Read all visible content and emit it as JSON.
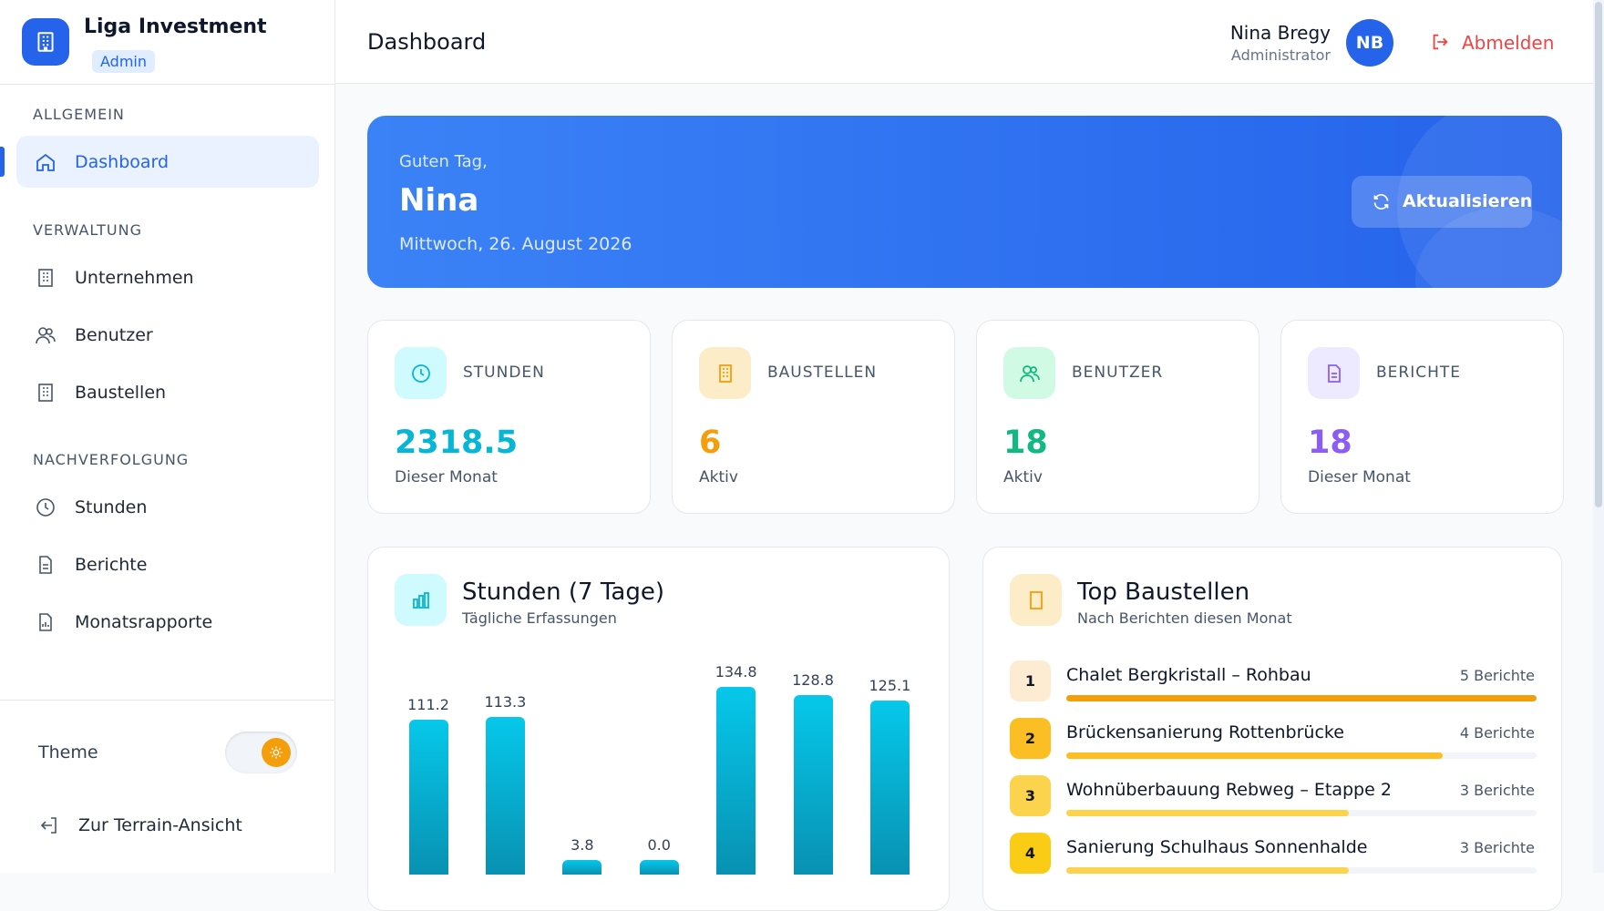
{
  "sidebar": {
    "brand": "Liga Investment",
    "role_badge": "Admin",
    "sections": [
      {
        "title": "ALLGEMEIN",
        "items": [
          "Dashboard"
        ]
      },
      {
        "title": "VERWALTUNG",
        "items": [
          "Unternehmen",
          "Benutzer",
          "Baustellen"
        ]
      },
      {
        "title": "NACHVERFOLGUNG",
        "items": [
          "Stunden",
          "Berichte",
          "Monatsrapporte"
        ]
      }
    ],
    "theme_label": "Theme",
    "terrain_link": "Zur Terrain-Ansicht"
  },
  "header": {
    "title": "Dashboard",
    "user_name": "Nina Bregy",
    "user_role": "Administrator",
    "initials": "NB",
    "logout": "Abmelden"
  },
  "hero": {
    "greeting": "Guten Tag,",
    "name": "Nina",
    "date": "Mittwoch, 26. August 2026",
    "button": "Aktualisieren"
  },
  "stats": [
    {
      "label": "STUNDEN",
      "value": "2318.5",
      "note": "Dieser Monat",
      "color": "#06b6d4",
      "bg": "#cffafe"
    },
    {
      "label": "BAUSTELLEN",
      "value": "6",
      "note": "Aktiv",
      "color": "#f59e0b",
      "bg": "#fdecc8"
    },
    {
      "label": "BENUTZER",
      "value": "18",
      "note": "Aktiv",
      "color": "#10b981",
      "bg": "#d1fae5"
    },
    {
      "label": "BERICHTE",
      "value": "18",
      "note": "Dieser Monat",
      "color": "#8b5cf6",
      "bg": "#ede9fe"
    }
  ],
  "chart_data": {
    "type": "bar",
    "title": "Stunden (7 Tage)",
    "subtitle": "Tägliche Erfassungen",
    "values": [
      111.2,
      113.3,
      3.8,
      0,
      134.8,
      128.8,
      125.1
    ],
    "value_labels": [
      "111.2",
      "113.3",
      "3.8",
      "0.0",
      "134.8",
      "128.8",
      "125.1"
    ],
    "ylim": [
      0,
      140
    ],
    "color": "#06b6d4"
  },
  "top_sites": {
    "title": "Top Baustellen",
    "subtitle": "Nach Berichten diesen Monat",
    "rows": [
      {
        "rank": 1,
        "name": "Chalet Bergkristall – Rohbau",
        "reports": 5,
        "reports_label": "5 Berichte"
      },
      {
        "rank": 2,
        "name": "Brückensanierung Rottenbrücke",
        "reports": 4,
        "reports_label": "4 Berichte"
      },
      {
        "rank": 3,
        "name": "Wohnüberbauung Rebweg – Etappe 2",
        "reports": 3,
        "reports_label": "3 Berichte"
      },
      {
        "rank": 4,
        "name": "Sanierung Schulhaus Sonnenhalde",
        "reports": 3,
        "reports_label": "3 Berichte"
      }
    ]
  }
}
